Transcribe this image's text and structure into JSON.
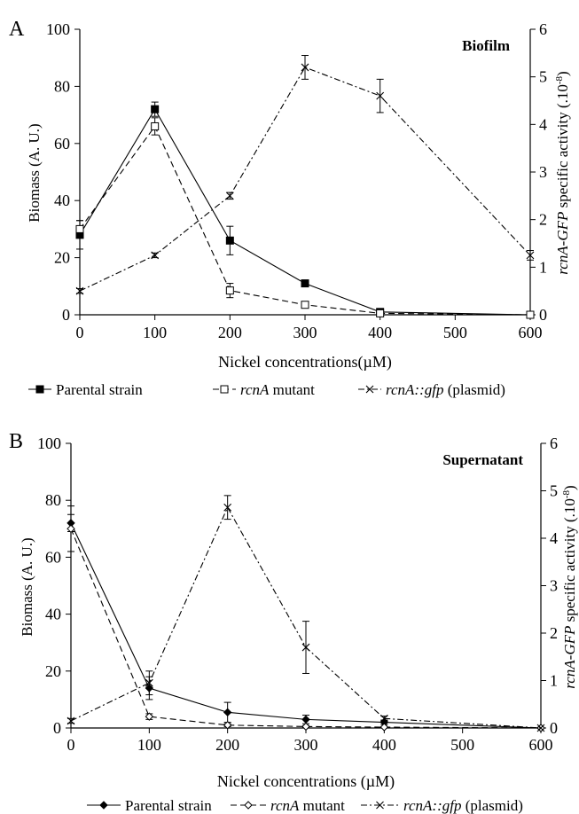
{
  "chart_data": [
    {
      "panel_label": "A",
      "type": "line",
      "title": "Biofilm",
      "xlabel": "Nickel concentrations(µM)",
      "ylabel": "Biomass (A. U.)",
      "y2label": "rcnA-GFP specific activity (.10⁻⁸)",
      "categories": [
        "0",
        "100",
        "200",
        "300",
        "400",
        "500",
        "600"
      ],
      "ylim": [
        0,
        100
      ],
      "yticks": [
        0,
        20,
        40,
        60,
        80,
        100
      ],
      "y2lim": [
        0,
        6
      ],
      "y2ticks": [
        0,
        1,
        2,
        3,
        4,
        5,
        6
      ],
      "grid": false,
      "legend_position": "bottom",
      "series": [
        {
          "name": "Parental strain",
          "axis": "left",
          "marker": "filled-square",
          "dash": "solid",
          "points": [
            [
              0,
              28
            ],
            [
              1,
              72
            ],
            [
              2,
              26
            ],
            [
              3,
              11
            ],
            [
              4,
              1
            ],
            [
              6,
              0
            ]
          ],
          "errors": [
            5,
            2.5,
            5,
            0.5,
            0.5,
            0
          ]
        },
        {
          "name": "rcnA  mutant",
          "axis": "left",
          "marker": "open-square",
          "dash": "dashed",
          "points": [
            [
              0,
              30
            ],
            [
              1,
              66
            ],
            [
              2,
              8.5
            ],
            [
              3,
              3.5
            ],
            [
              4,
              0.5
            ],
            [
              6,
              0
            ]
          ],
          "errors": [
            3,
            3,
            2.5,
            0.5,
            0.5,
            0
          ]
        },
        {
          "name": "rcnA::gfp (plasmid)",
          "axis": "right",
          "marker": "x",
          "dash": "dashdot",
          "points": [
            [
              0,
              0.5
            ],
            [
              1,
              1.25
            ],
            [
              2,
              2.5
            ],
            [
              3,
              5.2
            ],
            [
              4,
              4.6
            ],
            [
              6,
              1.25
            ]
          ],
          "errors": [
            0.05,
            0.05,
            0.07,
            0.25,
            0.35,
            0.1
          ]
        }
      ]
    },
    {
      "panel_label": "B",
      "type": "line",
      "title": "Supernatant",
      "xlabel": "Nickel concentrations (µM)",
      "ylabel": "Biomass (A. U.)",
      "y2label": "rcnA-GFP specific activity (.10⁻⁸)",
      "categories": [
        "0",
        "100",
        "200",
        "300",
        "400",
        "500",
        "600"
      ],
      "ylim": [
        0,
        100
      ],
      "yticks": [
        0,
        20,
        40,
        60,
        80,
        100
      ],
      "y2lim": [
        0,
        6
      ],
      "y2ticks": [
        0,
        1,
        2,
        3,
        4,
        5,
        6
      ],
      "grid": false,
      "legend_position": "bottom",
      "series": [
        {
          "name": "Parental strain",
          "axis": "left",
          "marker": "filled-diamond",
          "dash": "solid",
          "points": [
            [
              0,
              72
            ],
            [
              1,
              14
            ],
            [
              2,
              5.5
            ],
            [
              3,
              3
            ],
            [
              4,
              2
            ],
            [
              6,
              0
            ]
          ],
          "errors": [
            3,
            4,
            3.5,
            1.5,
            0.8,
            0
          ]
        },
        {
          "name": "rcnA mutant",
          "axis": "left",
          "marker": "open-diamond",
          "dash": "dashed",
          "points": [
            [
              0,
              70
            ],
            [
              1,
              4
            ],
            [
              2,
              1
            ],
            [
              3,
              0.5
            ],
            [
              4,
              0.3
            ],
            [
              6,
              0
            ]
          ],
          "errors": [
            8,
            1,
            0.5,
            0.3,
            0.2,
            0
          ]
        },
        {
          "name": "rcnA::gfp (plasmid)",
          "axis": "right",
          "marker": "x",
          "dash": "dashdot",
          "points": [
            [
              0,
              0.15
            ],
            [
              1,
              0.95
            ],
            [
              2,
              4.65
            ],
            [
              3,
              1.7
            ],
            [
              4,
              0.2
            ],
            [
              6,
              0
            ]
          ],
          "errors": [
            0.05,
            0.25,
            0.25,
            0.55,
            0.05,
            0
          ]
        }
      ]
    }
  ]
}
